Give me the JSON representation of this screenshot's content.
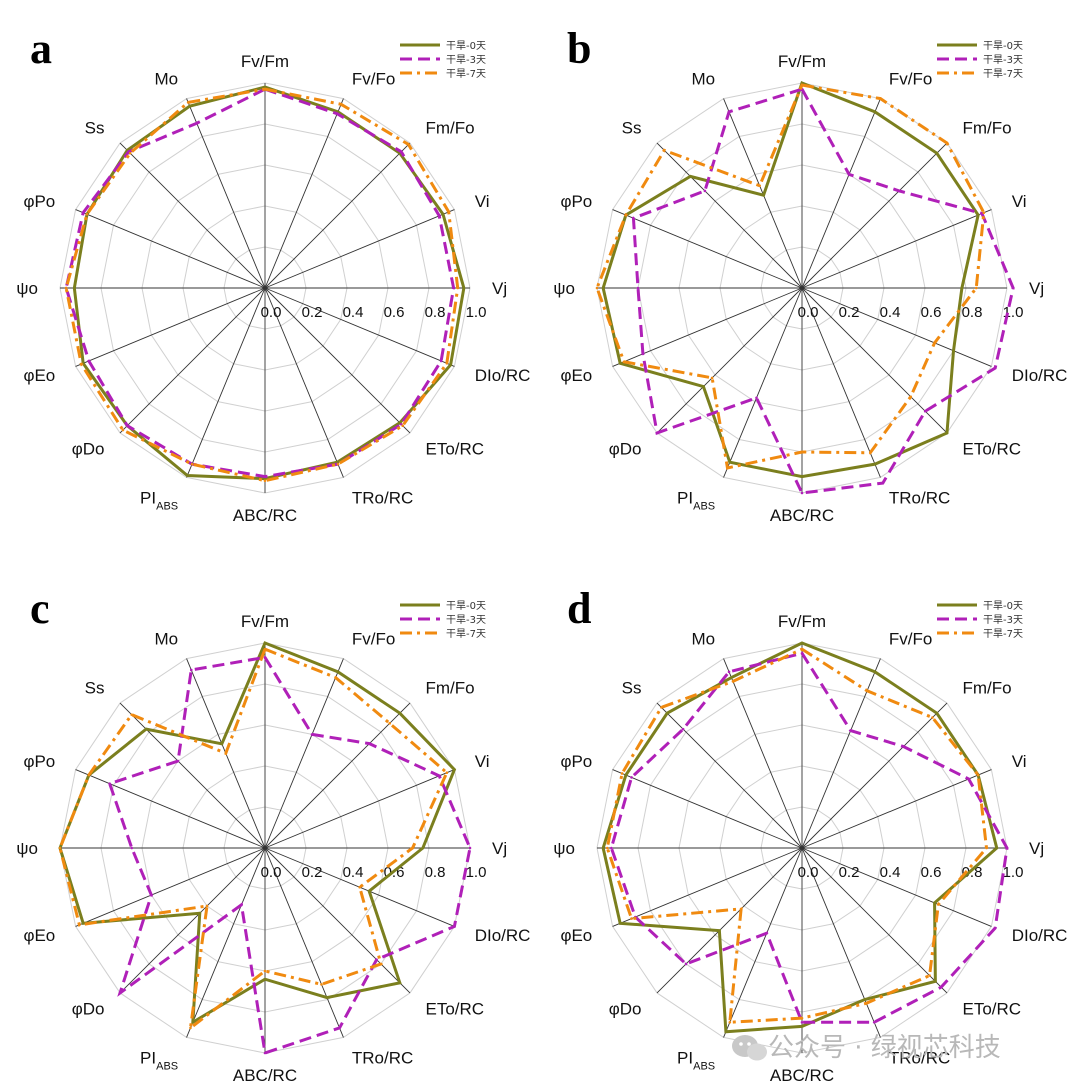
{
  "chart_data": [
    {
      "type": "radar",
      "panel": "a",
      "axes": [
        "Fv/Fm",
        "Fv/Fo",
        "Fm/Fo",
        "Vi",
        "Vj",
        "DIo/RC",
        "ETo/RC",
        "TRo/RC",
        "ABC/RC",
        "PI_ABS",
        "φDo",
        "φEo",
        "ψo",
        "φPo",
        "Ss",
        "Mo"
      ],
      "radial_ticks": [
        "0.0",
        "0.2",
        "0.4",
        "0.6",
        "0.8",
        "1.0"
      ],
      "rlim": [
        0,
        1
      ],
      "grid": true,
      "legend_position": "top-right",
      "series": [
        {
          "name": "干旱-0天",
          "color": "#7b7f1e",
          "dash": "solid",
          "values": [
            0.98,
            0.93,
            0.93,
            0.94,
            0.97,
            0.98,
            0.93,
            0.92,
            0.93,
            0.99,
            0.95,
            0.96,
            0.93,
            0.94,
            0.95,
            0.96
          ]
        },
        {
          "name": "干旱-3天",
          "color": "#b020b8",
          "dash": "dashed",
          "values": [
            0.97,
            0.92,
            0.94,
            0.92,
            0.92,
            0.93,
            0.94,
            0.93,
            0.92,
            0.93,
            0.95,
            0.93,
            0.97,
            0.96,
            0.94,
            0.87
          ]
        },
        {
          "name": "干旱-7天",
          "color": "#f08a10",
          "dash": "dashdot",
          "values": [
            0.97,
            0.97,
            0.99,
            0.97,
            0.94,
            0.96,
            0.95,
            0.93,
            0.94,
            0.93,
            0.98,
            0.97,
            0.97,
            0.94,
            0.93,
            0.98
          ]
        }
      ]
    },
    {
      "type": "radar",
      "panel": "b",
      "axes": [
        "Fv/Fm",
        "Fv/Fo",
        "Fm/Fo",
        "Vi",
        "Vj",
        "DIo/RC",
        "ETo/RC",
        "TRo/RC",
        "ABC/RC",
        "PI_ABS",
        "φDo",
        "φEo",
        "ψo",
        "φPo",
        "Ss",
        "Mo"
      ],
      "radial_ticks": [
        "0.0",
        "0.2",
        "0.4",
        "0.6",
        "0.8",
        "1.0"
      ],
      "rlim": [
        0,
        1
      ],
      "grid": true,
      "legend_position": "top-right",
      "series": [
        {
          "name": "干旱-0天",
          "color": "#7b7f1e",
          "dash": "solid",
          "values": [
            1.0,
            0.93,
            0.93,
            0.93,
            0.78,
            0.8,
            1.0,
            0.93,
            0.92,
            0.92,
            0.68,
            0.96,
            0.97,
            0.93,
            0.77,
            0.49
          ]
        },
        {
          "name": "干旱-3天",
          "color": "#b020b8",
          "dash": "dashed",
          "values": [
            0.97,
            0.6,
            0.67,
            0.95,
            1.03,
            1.02,
            0.85,
            1.03,
            1.0,
            0.58,
            1.0,
            0.84,
            0.8,
            0.89,
            0.67,
            0.93
          ]
        },
        {
          "name": "干旱-7天",
          "color": "#f08a10",
          "dash": "dashdot",
          "values": [
            0.99,
            1.0,
            1.0,
            0.96,
            0.85,
            0.7,
            0.75,
            0.87,
            0.8,
            0.95,
            0.62,
            0.94,
            1.0,
            0.93,
            0.95,
            0.54
          ]
        }
      ]
    },
    {
      "type": "radar",
      "panel": "c",
      "axes": [
        "Fv/Fm",
        "Fv/Fo",
        "Fm/Fo",
        "Vi",
        "Vj",
        "DIo/RC",
        "ETo/RC",
        "TRo/RC",
        "ABC/RC",
        "PI_ABS",
        "φDo",
        "φEo",
        "ψo",
        "φPo",
        "Ss",
        "Mo"
      ],
      "radial_ticks": [
        "0.0",
        "0.2",
        "0.4",
        "0.6",
        "0.8",
        "1.0"
      ],
      "rlim": [
        0,
        1
      ],
      "grid": true,
      "legend_position": "top-right",
      "series": [
        {
          "name": "干旱-0天",
          "color": "#7b7f1e",
          "dash": "solid",
          "values": [
            1.0,
            0.93,
            0.93,
            1.0,
            0.77,
            0.55,
            0.93,
            0.79,
            0.64,
            0.92,
            0.45,
            0.96,
            1.0,
            0.93,
            0.82,
            0.55
          ]
        },
        {
          "name": "干旱-3天",
          "color": "#b020b8",
          "dash": "dashed",
          "values": [
            0.93,
            0.6,
            0.72,
            0.92,
            1.0,
            1.0,
            0.77,
            0.95,
            1.0,
            0.3,
            1.0,
            0.6,
            0.65,
            0.82,
            0.6,
            0.94
          ]
        },
        {
          "name": "干旱-7天",
          "color": "#f08a10",
          "dash": "dashdot",
          "values": [
            0.97,
            0.9,
            0.86,
            0.96,
            0.72,
            0.5,
            0.8,
            0.72,
            0.6,
            0.95,
            0.4,
            0.98,
            1.0,
            0.93,
            0.92,
            0.5
          ]
        }
      ]
    },
    {
      "type": "radar",
      "panel": "d",
      "axes": [
        "Fv/Fm",
        "Fv/Fo",
        "Fm/Fo",
        "Vi",
        "Vj",
        "DIo/RC",
        "ETo/RC",
        "TRo/RC",
        "ABC/RC",
        "PI_ABS",
        "φDo",
        "φEo",
        "ψo",
        "φPo",
        "Ss",
        "Mo"
      ],
      "radial_ticks": [
        "0.0",
        "0.2",
        "0.4",
        "0.6",
        "0.8",
        "1.0"
      ],
      "rlim": [
        0,
        1
      ],
      "grid": true,
      "legend_position": "top-right",
      "series": [
        {
          "name": "干旱-0天",
          "color": "#7b7f1e",
          "dash": "solid",
          "values": [
            1.0,
            0.93,
            0.93,
            0.93,
            0.95,
            0.7,
            0.92,
            0.8,
            0.87,
            0.97,
            0.57,
            0.96,
            0.97,
            0.93,
            0.93,
            0.9
          ]
        },
        {
          "name": "干旱-3天",
          "color": "#b020b8",
          "dash": "dashed",
          "values": [
            0.95,
            0.62,
            0.7,
            0.88,
            1.0,
            1.02,
            0.96,
            0.92,
            0.85,
            0.45,
            0.8,
            0.88,
            0.93,
            0.9,
            0.82,
            0.93
          ]
        },
        {
          "name": "干旱-7天",
          "color": "#f08a10",
          "dash": "dashdot",
          "values": [
            0.97,
            0.83,
            0.9,
            0.93,
            0.9,
            0.72,
            0.88,
            0.82,
            0.83,
            0.92,
            0.42,
            0.9,
            0.95,
            0.95,
            0.97,
            0.88
          ]
        }
      ]
    }
  ],
  "watermark": "公众号 · 绿视芯科技",
  "panel_style": {
    "grid_color": "#d0d0d0",
    "spoke_color": "#333333"
  }
}
